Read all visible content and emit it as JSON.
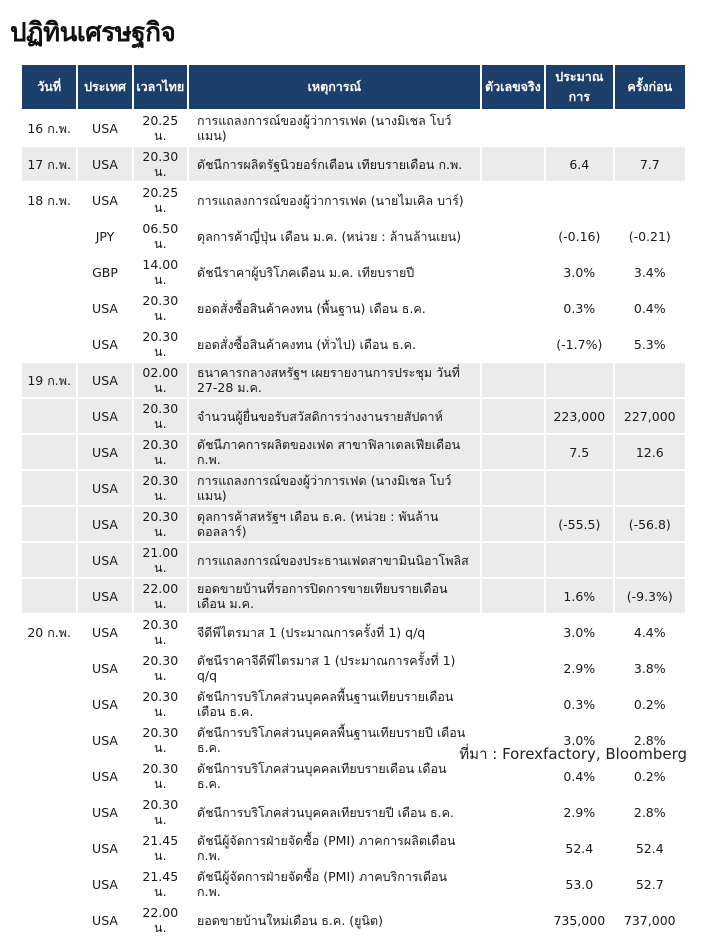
{
  "title": "ปฏิทินเศรษฐกิจ",
  "source_note": "ที่มา : Forexfactory, Bloomberg",
  "colors": {
    "header_bg": "#1c3e6b",
    "header_text": "#ffffff",
    "stripe_bg": "#ebebeb",
    "row_bg": "#ffffff",
    "text": "#1a1a1a"
  },
  "chart_data": {
    "type": "table",
    "title": "ปฏิทินเศรษฐกิจ",
    "legend_position": "none",
    "grid": "off",
    "columns": [
      {
        "key": "date",
        "label": "วันที่"
      },
      {
        "key": "country",
        "label": "ประเทศ"
      },
      {
        "key": "time",
        "label": "เวลาไทย"
      },
      {
        "key": "event",
        "label": "เหตุการณ์"
      },
      {
        "key": "actual",
        "label": "ตัวเลขจริง"
      },
      {
        "key": "forecast",
        "label": "ประมาณการ"
      },
      {
        "key": "previous",
        "label": "ครั้งก่อน"
      }
    ],
    "rows": [
      {
        "date": "16 ก.พ.",
        "country": "USA",
        "time": "20.25 น.",
        "event": "การแถลงการณ์ของผู้ว่าการเฟด (นางมิเชล โบว์แมน)",
        "actual": "",
        "forecast": "",
        "previous": "",
        "shaded": false
      },
      {
        "date": "17 ก.พ.",
        "country": "USA",
        "time": "20.30 น.",
        "event": "ดัชนีการผลิตรัฐนิวยอร์กเดือน เทียบรายเดือน ก.พ.",
        "actual": "",
        "forecast": "6.4",
        "previous": "7.7",
        "shaded": true
      },
      {
        "date": "18 ก.พ.",
        "country": "USA",
        "time": "20.25 น.",
        "event": "การแถลงการณ์ของผู้ว่าการเฟด (นายไมเคิล บาร์)",
        "actual": "",
        "forecast": "",
        "previous": "",
        "shaded": false
      },
      {
        "date": "",
        "country": "JPY",
        "time": "06.50 น.",
        "event": "ดุลการค้าญี่ปุ่น เดือน ม.ค. (หน่วย : ล้านล้านเยน)",
        "actual": "",
        "forecast": "(-0.16)",
        "previous": "(-0.21)",
        "shaded": false
      },
      {
        "date": "",
        "country": "GBP",
        "time": "14.00 น.",
        "event": "ดัชนีราคาผู้บริโภคเดือน ม.ค. เทียบรายปี",
        "actual": "",
        "forecast": "3.0%",
        "previous": "3.4%",
        "shaded": false
      },
      {
        "date": "",
        "country": "USA",
        "time": "20.30 น.",
        "event": "ยอดสั่งซื้อสินค้าคงทน (พื้นฐาน) เดือน ธ.ค.",
        "actual": "",
        "forecast": "0.3%",
        "previous": "0.4%",
        "shaded": false
      },
      {
        "date": "",
        "country": "USA",
        "time": "20.30 น.",
        "event": "ยอดสั่งซื้อสินค้าคงทน (ทั่วไป) เดือน ธ.ค.",
        "actual": "",
        "forecast": "(-1.7%)",
        "previous": "5.3%",
        "shaded": false
      },
      {
        "date": "19 ก.พ.",
        "country": "USA",
        "time": "02.00 น.",
        "event": "ธนาคารกลางสหรัฐฯ เผยรายงานการประชุม วันที่ 27-28 ม.ค.",
        "actual": "",
        "forecast": "",
        "previous": "",
        "shaded": true
      },
      {
        "date": "",
        "country": "USA",
        "time": "20.30 น.",
        "event": "จำนวนผู้ยื่นขอรับสวัสดิการว่างงานรายสัปดาห์",
        "actual": "",
        "forecast": "223,000",
        "previous": "227,000",
        "shaded": true
      },
      {
        "date": "",
        "country": "USA",
        "time": "20.30 น.",
        "event": "ดัชนีภาคการผลิตของเฟด สาขาฟิลาเดลเฟียเดือน ก.พ.",
        "actual": "",
        "forecast": "7.5",
        "previous": "12.6",
        "shaded": true
      },
      {
        "date": "",
        "country": "USA",
        "time": "20.30 น.",
        "event": "การแถลงการณ์ของผู้ว่าการเฟด (นางมิเชล โบว์แมน)",
        "actual": "",
        "forecast": "",
        "previous": "",
        "shaded": true
      },
      {
        "date": "",
        "country": "USA",
        "time": "20.30 น.",
        "event": "ดุลการค้าสหรัฐฯ เดือน ธ.ค. (หน่วย : พันล้านดอลลาร์)",
        "actual": "",
        "forecast": "(-55.5)",
        "previous": "(-56.8)",
        "shaded": true
      },
      {
        "date": "",
        "country": "USA",
        "time": "21.00 น.",
        "event": "การแถลงการณ์ของประธานเฟดสาขามินนิอาโพลิส",
        "actual": "",
        "forecast": "",
        "previous": "",
        "shaded": true
      },
      {
        "date": "",
        "country": "USA",
        "time": "22.00 น.",
        "event": "ยอดขายบ้านที่รอการปิดการขายเทียบรายเดือน เดือน ม.ค.",
        "actual": "",
        "forecast": "1.6%",
        "previous": "(-9.3%)",
        "shaded": true
      },
      {
        "date": "20 ก.พ.",
        "country": "USA",
        "time": "20.30 น.",
        "event": "จีดีพีไตรมาส 1 (ประมาณการครั้งที่ 1) q/q",
        "actual": "",
        "forecast": "3.0%",
        "previous": "4.4%",
        "shaded": false
      },
      {
        "date": "",
        "country": "USA",
        "time": "20.30 น.",
        "event": "ดัชนีราคาจีดีพีไตรมาส 1 (ประมาณการครั้งที่ 1) q/q",
        "actual": "",
        "forecast": "2.9%",
        "previous": "3.8%",
        "shaded": false
      },
      {
        "date": "",
        "country": "USA",
        "time": "20.30 น.",
        "event": "ดัชนีการบริโภคส่วนบุคคลพื้นฐานเทียบรายเดือน เดือน ธ.ค.",
        "actual": "",
        "forecast": "0.3%",
        "previous": "0.2%",
        "shaded": false
      },
      {
        "date": "",
        "country": "USA",
        "time": "20.30 น.",
        "event": "ดัชนีการบริโภคส่วนบุคคลพื้นฐานเทียบรายปี เดือน ธ.ค.",
        "actual": "",
        "forecast": "3.0%",
        "previous": "2.8%",
        "shaded": false
      },
      {
        "date": "",
        "country": "USA",
        "time": "20.30 น.",
        "event": "ดัชนีการบริโภคส่วนบุคคลเทียบรายเดือน เดือน ธ.ค.",
        "actual": "",
        "forecast": "0.4%",
        "previous": "0.2%",
        "shaded": false
      },
      {
        "date": "",
        "country": "USA",
        "time": "20.30 น.",
        "event": "ดัชนีการบริโภคส่วนบุคคลเทียบรายปี เดือน ธ.ค.",
        "actual": "",
        "forecast": "2.9%",
        "previous": "2.8%",
        "shaded": false
      },
      {
        "date": "",
        "country": "USA",
        "time": "21.45 น.",
        "event": "ดัชนีผู้จัดการฝ่ายจัดซื้อ (PMI) ภาคการผลิตเดือน ก.พ.",
        "actual": "",
        "forecast": "52.4",
        "previous": "52.4",
        "shaded": false
      },
      {
        "date": "",
        "country": "USA",
        "time": "21.45 น.",
        "event": "ดัชนีผู้จัดการฝ่ายจัดซื้อ (PMI) ภาคบริการเดือน ก.พ.",
        "actual": "",
        "forecast": "53.0",
        "previous": "52.7",
        "shaded": false
      },
      {
        "date": "",
        "country": "USA",
        "time": "22.00 น.",
        "event": "ยอดขายบ้านใหม่เดือน ธ.ค. (ยูนิต)",
        "actual": "",
        "forecast": "735,000",
        "previous": "737,000",
        "shaded": false
      }
    ]
  }
}
